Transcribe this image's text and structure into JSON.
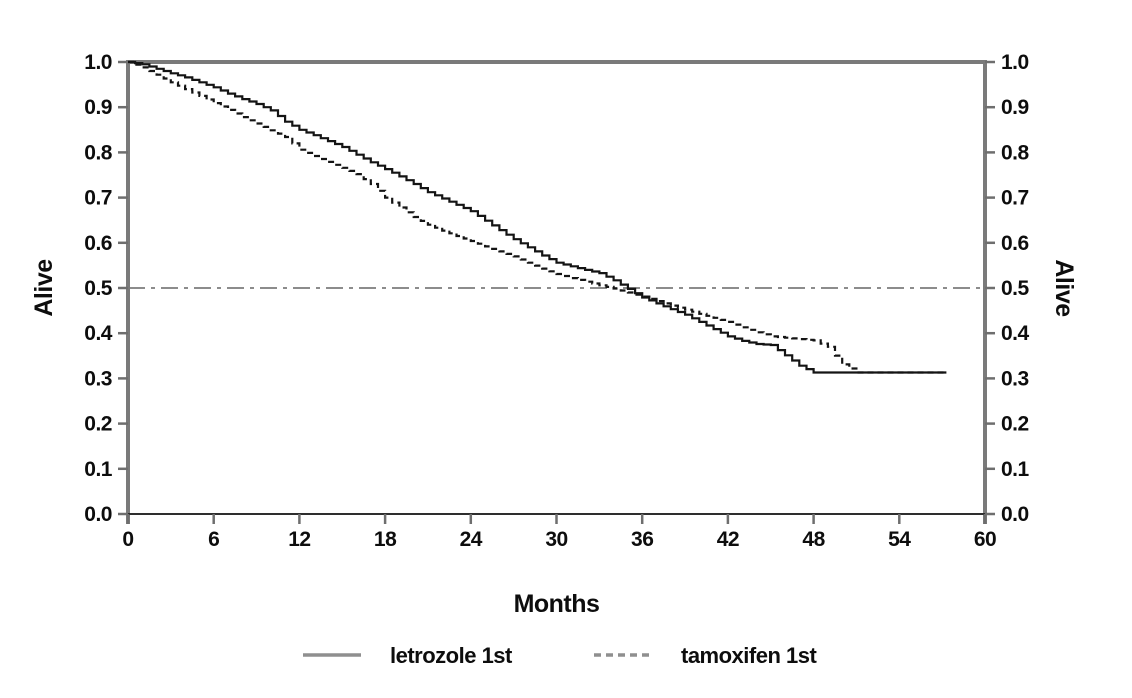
{
  "chart_data": {
    "type": "line",
    "subtype": "kaplan-meier-step",
    "title": "",
    "xlabel": "Months",
    "ylabel_left": "Alive",
    "ylabel_right": "Alive",
    "xlim": [
      0,
      60
    ],
    "ylim": [
      0.0,
      1.0
    ],
    "xticks": [
      0,
      6,
      12,
      18,
      24,
      30,
      36,
      42,
      48,
      54,
      60
    ],
    "xtick_labels": [
      "0",
      "6",
      "12",
      "18",
      "24",
      "30",
      "36",
      "42",
      "48",
      "54",
      "60"
    ],
    "yticks": [
      0.0,
      0.1,
      0.2,
      0.3,
      0.4,
      0.5,
      0.6,
      0.7,
      0.8,
      0.9,
      1.0
    ],
    "ytick_labels": [
      "0.0",
      "0.1",
      "0.2",
      "0.3",
      "0.4",
      "0.5",
      "0.6",
      "0.7",
      "0.8",
      "0.9",
      "1.0"
    ],
    "grid": false,
    "legend_position": "bottom-center",
    "reference_line": {
      "y": 0.5,
      "style": "dash-dot",
      "color": "#8c8c8c"
    },
    "series": [
      {
        "name": "letrozole 1st",
        "style": "solid",
        "color": "#141414",
        "x": [
          0,
          1,
          2,
          3,
          4,
          5,
          6,
          7,
          8,
          9,
          10,
          11,
          12,
          13,
          14,
          15,
          16,
          17,
          18,
          19,
          20,
          21,
          22,
          23,
          24,
          25,
          26,
          27,
          28,
          29,
          30,
          31,
          32,
          33,
          34,
          35,
          36,
          37,
          38,
          39,
          40,
          41,
          42,
          43,
          44,
          45,
          46,
          47,
          48,
          49,
          50,
          51,
          52,
          53,
          54,
          55,
          56,
          57,
          57.3
        ],
        "y": [
          1.0,
          0.995,
          0.985,
          0.975,
          0.966,
          0.955,
          0.944,
          0.93,
          0.918,
          0.907,
          0.893,
          0.868,
          0.85,
          0.838,
          0.825,
          0.812,
          0.795,
          0.778,
          0.763,
          0.747,
          0.73,
          0.712,
          0.698,
          0.684,
          0.67,
          0.649,
          0.628,
          0.608,
          0.59,
          0.572,
          0.556,
          0.548,
          0.54,
          0.533,
          0.517,
          0.498,
          0.479,
          0.466,
          0.453,
          0.441,
          0.425,
          0.409,
          0.393,
          0.383,
          0.376,
          0.374,
          0.351,
          0.328,
          0.313,
          0.313,
          0.313,
          0.313,
          0.313,
          0.313,
          0.313,
          0.313,
          0.313,
          0.313,
          0.313
        ]
      },
      {
        "name": "tamoxifen 1st",
        "style": "dashed",
        "color": "#141414",
        "x": [
          0,
          1,
          2,
          3,
          4,
          5,
          6,
          7,
          8,
          9,
          10,
          11,
          12,
          13,
          14,
          15,
          16,
          17,
          18,
          19,
          20,
          21,
          22,
          23,
          24,
          25,
          26,
          27,
          28,
          29,
          30,
          31,
          32,
          33,
          34,
          35,
          36,
          37,
          38,
          39,
          40,
          41,
          42,
          43,
          44,
          45,
          46,
          47,
          48,
          49,
          50,
          51,
          52,
          53,
          54,
          55,
          56,
          57,
          57.3
        ],
        "y": [
          1.0,
          0.988,
          0.972,
          0.955,
          0.94,
          0.925,
          0.909,
          0.894,
          0.878,
          0.864,
          0.849,
          0.834,
          0.806,
          0.792,
          0.779,
          0.766,
          0.752,
          0.73,
          0.7,
          0.678,
          0.657,
          0.64,
          0.627,
          0.615,
          0.604,
          0.592,
          0.581,
          0.57,
          0.556,
          0.543,
          0.531,
          0.522,
          0.514,
          0.506,
          0.499,
          0.49,
          0.481,
          0.471,
          0.461,
          0.452,
          0.443,
          0.434,
          0.425,
          0.413,
          0.402,
          0.393,
          0.39,
          0.387,
          0.384,
          0.37,
          0.331,
          0.313,
          0.313,
          0.313,
          0.313,
          0.313,
          0.313,
          0.313,
          0.313
        ]
      }
    ]
  },
  "colors": {
    "background": "#ffffff",
    "frame": "#7a7a7a",
    "bottom_axis": "#2e2e2e",
    "tick": "#6e6e6e",
    "text": "#0d0d0d",
    "legend_sample": "#8f8f8f",
    "reference_line": "#8c8c8c"
  }
}
